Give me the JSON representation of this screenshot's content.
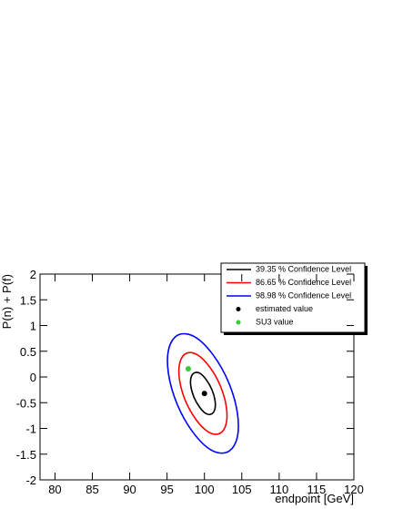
{
  "chart_data": {
    "type": "contour",
    "x_label": "endpoint [GeV]",
    "y_label": "P(n) + P(f)",
    "xlim": [
      78,
      120
    ],
    "ylim": [
      -2,
      2
    ],
    "xticks": [
      80,
      85,
      90,
      95,
      100,
      105,
      110,
      115,
      120
    ],
    "yticks": [
      -2,
      -1.5,
      -1,
      -0.5,
      0,
      0.5,
      1,
      1.5,
      2
    ],
    "series": [
      {
        "name": "39.35 % Confidence Level",
        "color": "#000000",
        "x": [
          100.94,
          101.39,
          101.42,
          101.01,
          100.28,
          99.42,
          98.66,
          98.21,
          98.18,
          98.59,
          99.32,
          100.18
        ],
        "y": [
          -0.72,
          -0.63,
          -0.46,
          -0.25,
          -0.06,
          0.07,
          0.08,
          -0.01,
          -0.18,
          -0.39,
          -0.58,
          -0.71
        ]
      },
      {
        "name": "86.65 % Confidence Level",
        "color": "#ff0000",
        "x": [
          102.02,
          102.89,
          102.94,
          102.15,
          100.72,
          99.06,
          97.58,
          96.71,
          96.66,
          97.45,
          98.88,
          100.54
        ],
        "y": [
          -1.1,
          -0.92,
          -0.59,
          -0.18,
          0.19,
          0.43,
          0.46,
          0.28,
          -0.05,
          -0.46,
          -0.83,
          -1.07
        ]
      },
      {
        "name": "98.98 % Confidence Level",
        "color": "#0000ff",
        "x": [
          103.06,
          104.35,
          104.42,
          103.25,
          101.16,
          98.71,
          96.54,
          95.25,
          95.18,
          96.35,
          98.44,
          100.89
        ],
        "y": [
          -1.46,
          -1.2,
          -0.71,
          -0.11,
          0.43,
          0.78,
          0.82,
          0.56,
          0.07,
          -0.53,
          -1.07,
          -1.42
        ]
      }
    ],
    "points": [
      {
        "name": "estimated value",
        "color": "#000000",
        "x": 100.0,
        "y": -0.32
      },
      {
        "name": "SU3 value",
        "color": "#33cc33",
        "x": 97.84,
        "y": 0.16
      }
    ]
  }
}
